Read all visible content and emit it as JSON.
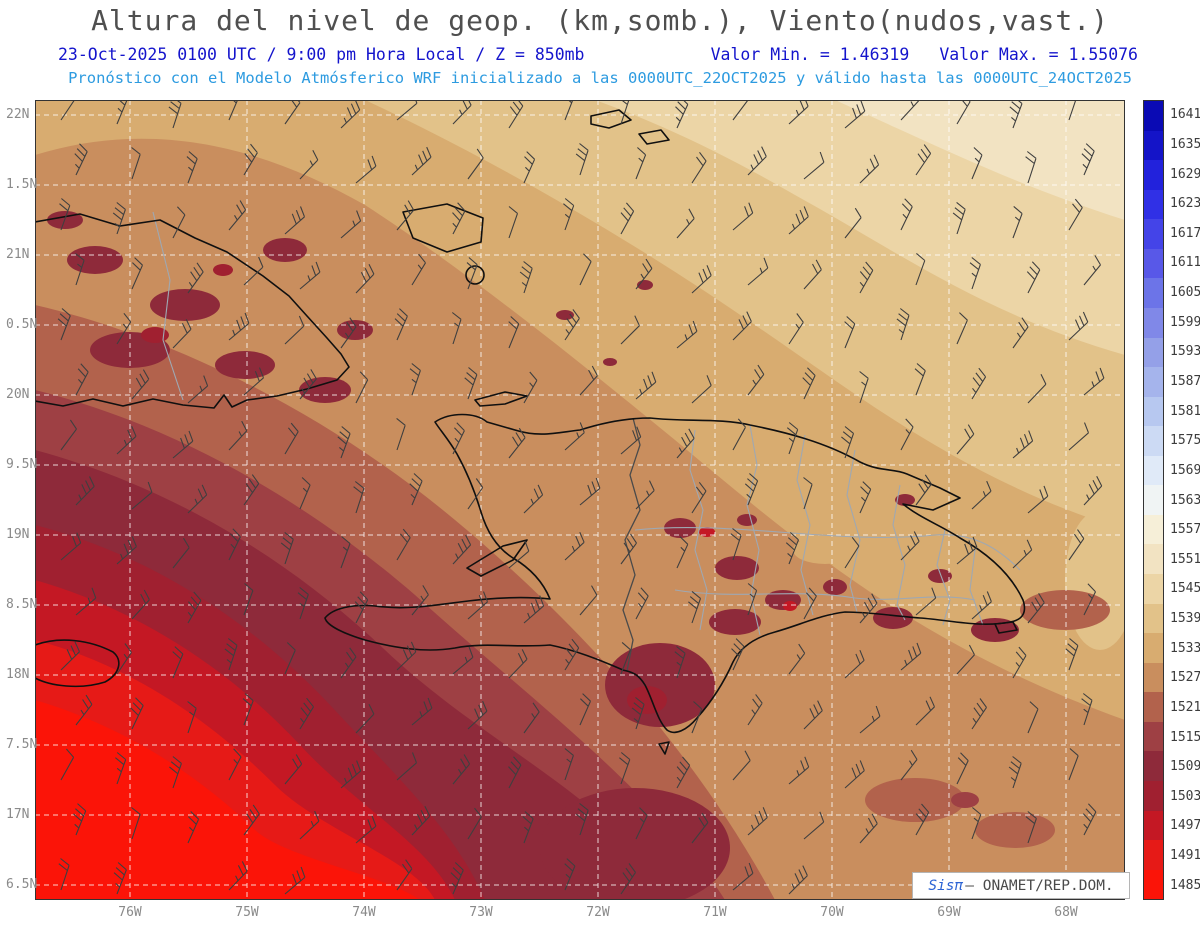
{
  "title": "Altura del nivel de geop. (km,somb.), Viento(nudos,vast.)",
  "subtitle": {
    "datetime": "23-Oct-2025  0100 UTC / 9:00 pm Hora Local / Z = 850mb",
    "min_label": "Valor Min. = 1.46319",
    "max_label": "Valor Max. = 1.55076",
    "model_line": "Pronóstico con el Modelo Atmósferico WRF inicializado a las 0000UTC_22OCT2025 y válido hasta las  0000UTC_24OCT2025"
  },
  "credit": {
    "logo": "Sisπ",
    "rest": "– ONAMET/REP.DOM."
  },
  "chart_data": {
    "type": "heatmap",
    "title": "Altura del nivel de geop. (km,somb.), Viento(nudos,vast.)",
    "shaded_variable": "Altura del nivel de geopotencial (km, sombreado)",
    "overlay_variable": "Viento (nudos, vastagos/barbas)",
    "level": "850mb",
    "valid_time": "23-Oct-2025 0100 UTC / 9:00 pm Hora Local",
    "valor_min_km": 1.46319,
    "valor_max_km": 1.55076,
    "model": "WRF",
    "initialized": "0000UTC_22OCT2025",
    "valid_until": "0000UTC_24OCT2025",
    "region": "Hispaniola, eastern Cuba, Jamaica and surrounding Atlantic/Caribbean",
    "x_ticks": [
      "76W",
      "75W",
      "74W",
      "73W",
      "72W",
      "71W",
      "70W",
      "69W",
      "68W"
    ],
    "y_ticks": [
      "22N",
      "1.5N",
      "21N",
      "0.5N",
      "20N",
      "9.5N",
      "19N",
      "8.5N",
      "18N",
      "7.5N",
      "17N",
      "6.5N"
    ],
    "colorbar_levels_m": [
      1641,
      1635,
      1629,
      1623,
      1617,
      1611,
      1605,
      1599,
      1593,
      1587,
      1581,
      1575,
      1569,
      1563,
      1557,
      1551,
      1545,
      1539,
      1533,
      1527,
      1521,
      1515,
      1509,
      1503,
      1497,
      1491,
      1485
    ],
    "colorbar_colors": [
      "#0A0AB4",
      "#1414C8",
      "#2222DC",
      "#3030E6",
      "#4444E8",
      "#5858E8",
      "#6C74E8",
      "#8088E8",
      "#94A0E8",
      "#A5B4EC",
      "#B7C8F0",
      "#CCDAF4",
      "#E0EAF8",
      "#F0F4F4",
      "#F6EFD8",
      "#F2E3C2",
      "#ECD5A6",
      "#E2C289",
      "#D8AC70",
      "#C98E5E",
      "#B2624C",
      "#9E4044",
      "#8E2A3A",
      "#A02030",
      "#C41824",
      "#E61A17",
      "#FB1408"
    ],
    "grid": "dashed white lat/lon grid every 0.5 deg lat, 1 deg lon",
    "legend_position": "right vertical colorbar",
    "pattern": "geopotential height increases from bright-red minimum southwest of Haiti/Jamaica toward pale cream maximum over the northeast Atlantic; dark maroon patches over eastern Cuba and interior Hispaniola; easterly wind barbs across the whole domain"
  },
  "colors": {
    "title_gray": "#4F4F4F",
    "header_blue": "#1414CC",
    "header_lightblue": "#2D9BE0",
    "coastline": "#101010",
    "province_border": "#9FA8B2",
    "wind_barb": "#3F3F3F",
    "gridline": "#FFFFFF"
  }
}
